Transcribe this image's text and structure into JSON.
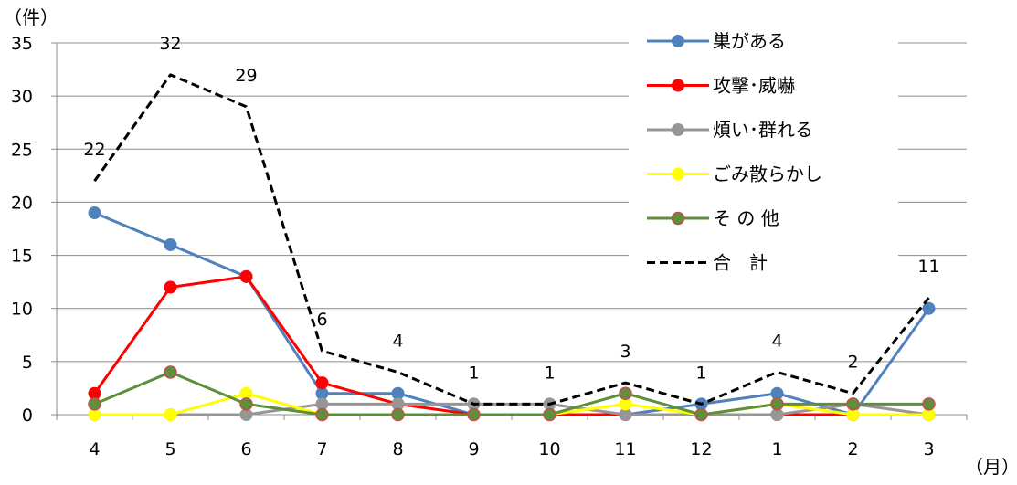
{
  "chart_data": {
    "type": "line",
    "y_unit_label": "（件）",
    "x_unit_label": "（月）",
    "categories": [
      "4",
      "5",
      "6",
      "7",
      "8",
      "9",
      "10",
      "11",
      "12",
      "1",
      "2",
      "3"
    ],
    "ylim": [
      0,
      35
    ],
    "yticks": [
      "0",
      "5",
      "10",
      "15",
      "20",
      "25",
      "30",
      "35"
    ],
    "grid": true,
    "legend_position": "right",
    "series": [
      {
        "name": "巣がある",
        "color": "#4f81bd",
        "marker": "circle",
        "dash": false,
        "values": [
          19,
          16,
          13,
          2,
          2,
          0,
          0,
          0,
          1,
          2,
          0,
          10
        ]
      },
      {
        "name": "攻撃･威嚇",
        "color": "#ff0000",
        "marker": "circle",
        "dash": false,
        "values": [
          2,
          12,
          13,
          3,
          1,
          0,
          0,
          0,
          0,
          0,
          0,
          0
        ]
      },
      {
        "name": "煩い･群れる",
        "color": "#969696",
        "marker": "circle",
        "dash": false,
        "values": [
          0,
          0,
          0,
          1,
          1,
          1,
          1,
          0,
          0,
          0,
          1,
          0
        ]
      },
      {
        "name": "ごみ散らかし",
        "color": "#ffff00",
        "marker": "circle",
        "dash": false,
        "values": [
          0,
          0,
          2,
          0,
          0,
          0,
          0,
          1,
          0,
          1,
          0,
          0
        ]
      },
      {
        "name": "そ の 他",
        "color": "#5f8f3a",
        "marker": "circle",
        "marker_stroke": "#c0504d",
        "dash": false,
        "values": [
          1,
          4,
          1,
          0,
          0,
          0,
          0,
          2,
          0,
          1,
          1,
          1
        ]
      },
      {
        "name": "合　計",
        "color": "#000000",
        "marker": "none",
        "dash": true,
        "values": [
          22,
          32,
          29,
          6,
          4,
          1,
          1,
          3,
          1,
          4,
          2,
          11
        ],
        "data_labels": [
          "22",
          "32",
          "29",
          "6",
          "4",
          "1",
          "1",
          "3",
          "1",
          "4",
          "2",
          "11"
        ]
      }
    ]
  }
}
